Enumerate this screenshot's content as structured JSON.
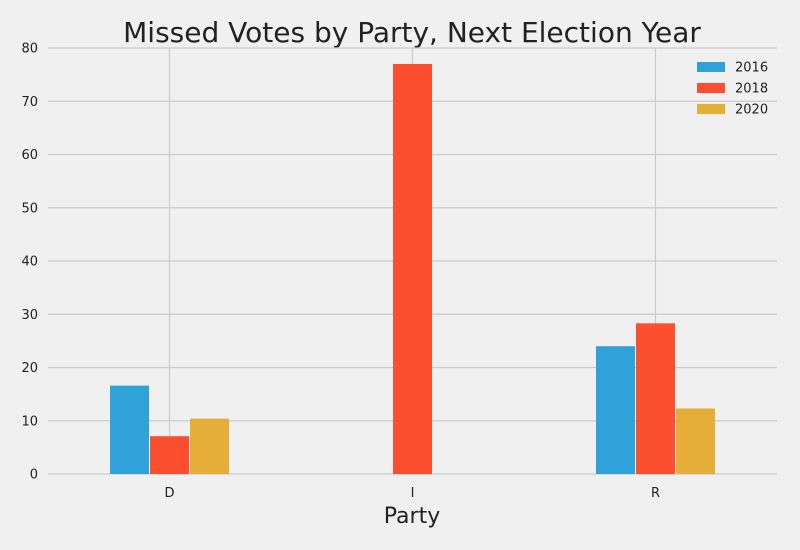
{
  "chart_data": {
    "type": "bar",
    "title": "Missed Votes by Party, Next Election Year",
    "xlabel": "Party",
    "ylabel": "",
    "categories": [
      "D",
      "I",
      "R"
    ],
    "series": [
      {
        "name": "2016",
        "values": [
          16.6,
          0,
          24.0
        ]
      },
      {
        "name": "2018",
        "values": [
          7.1,
          77.0,
          28.3
        ]
      },
      {
        "name": "2020",
        "values": [
          10.4,
          0,
          12.3
        ]
      }
    ],
    "ylim": [
      0,
      80
    ],
    "yticks": [
      0,
      10,
      20,
      30,
      40,
      50,
      60,
      70,
      80
    ],
    "grid": true,
    "legend_position": "top-right",
    "colors": [
      "#30a2da",
      "#fc4f30",
      "#e5ae38"
    ]
  }
}
